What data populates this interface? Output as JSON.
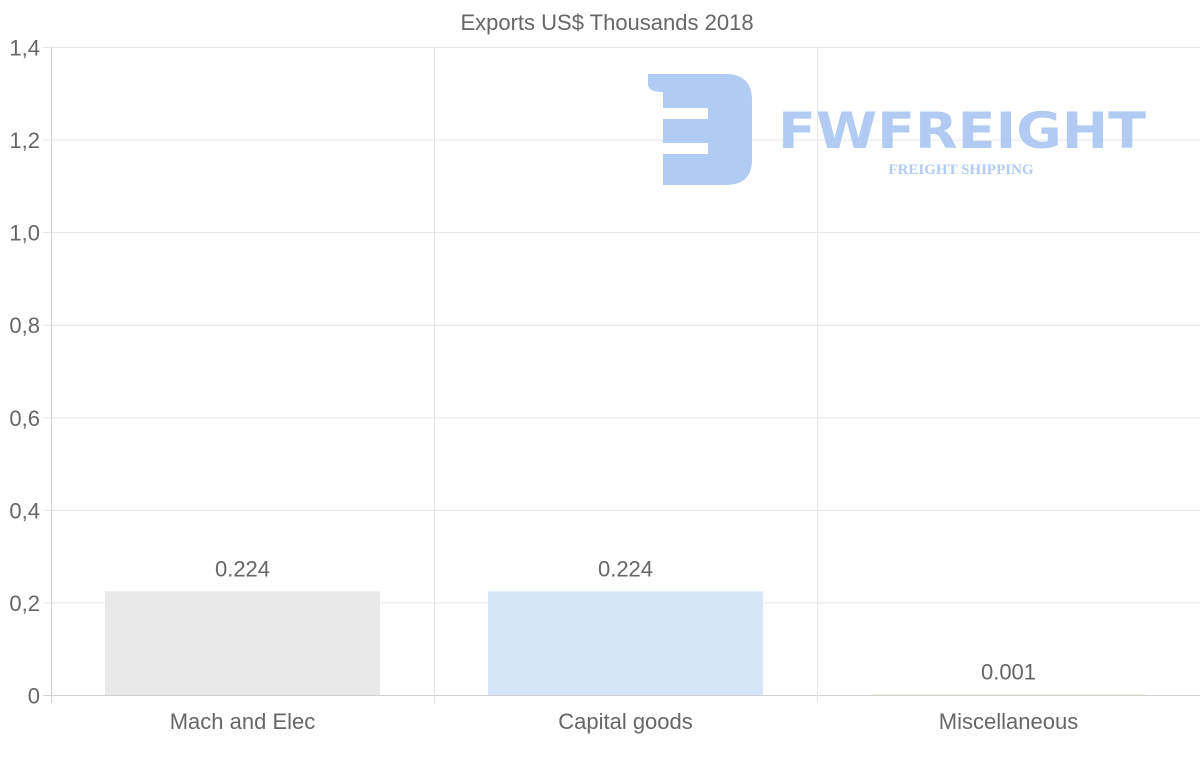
{
  "chart_data": {
    "type": "bar",
    "title": "Exports US$ Thousands 2018",
    "categories": [
      "Mach and Elec",
      "Capital goods",
      "Miscellaneous"
    ],
    "values": [
      0.224,
      0.224,
      0.001
    ],
    "value_labels": [
      "0.224",
      "0.224",
      "0.001"
    ],
    "bar_colors": [
      "#e8e8e8",
      "#d6e6f8",
      "#f3e9d2"
    ],
    "ylim": [
      0,
      1.4
    ],
    "yticks": [
      0,
      0.2,
      0.4,
      0.6,
      0.8,
      1.0,
      1.2,
      1.4
    ],
    "ytick_labels": [
      "0",
      "0,2",
      "0,4",
      "0,6",
      "0,8",
      "1,0",
      "1,2",
      "1,4"
    ],
    "xlabel": "",
    "ylabel": "",
    "grid": true,
    "legend": "none"
  },
  "watermark": {
    "brand": "FWFREIGHT",
    "tagline": "FREIGHT SHIPPING",
    "color": "#a9c6f2"
  }
}
